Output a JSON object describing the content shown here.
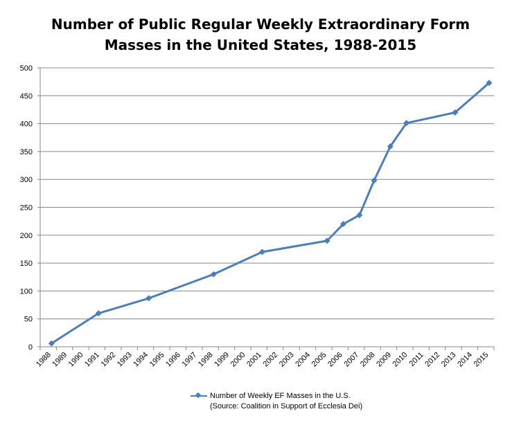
{
  "chart_data": {
    "type": "line",
    "title": [
      "Number of Public Regular Weekly Extraordinary Form",
      "Masses in the United States, 1988-2015"
    ],
    "categories": [
      "1988",
      "1989",
      "1990",
      "1991",
      "1992",
      "1993",
      "1994",
      "1995",
      "1996",
      "1997",
      "1998",
      "1999",
      "2000",
      "2001",
      "2002",
      "2003",
      "2004",
      "2005",
      "2006",
      "2007",
      "2008",
      "2009",
      "2010",
      "2011",
      "2012",
      "2013",
      "2014",
      "2015"
    ],
    "series": [
      {
        "name": "Number of Weekly EF Masses in the U.S.",
        "name_line2": "(Source: Coalition in Support of Ecclesia Dei)",
        "color": "#4a7ebb",
        "points": [
          {
            "x": 1988.2,
            "y": 6
          },
          {
            "x": 1991.1,
            "y": 60
          },
          {
            "x": 1994.2,
            "y": 87
          },
          {
            "x": 1998.2,
            "y": 130
          },
          {
            "x": 2001.2,
            "y": 170
          },
          {
            "x": 2005.2,
            "y": 190
          },
          {
            "x": 2006.2,
            "y": 220
          },
          {
            "x": 2007.2,
            "y": 236
          },
          {
            "x": 2008.1,
            "y": 298
          },
          {
            "x": 2009.1,
            "y": 359
          },
          {
            "x": 2010.1,
            "y": 401
          },
          {
            "x": 2013.1,
            "y": 420
          },
          {
            "x": 2015.2,
            "y": 473
          }
        ]
      }
    ],
    "yticks": [
      0,
      50,
      100,
      150,
      200,
      250,
      300,
      350,
      400,
      450,
      500
    ],
    "ylim": [
      0,
      500
    ],
    "grid": "horizontal",
    "legend": "bottom",
    "marker": "diamond"
  }
}
